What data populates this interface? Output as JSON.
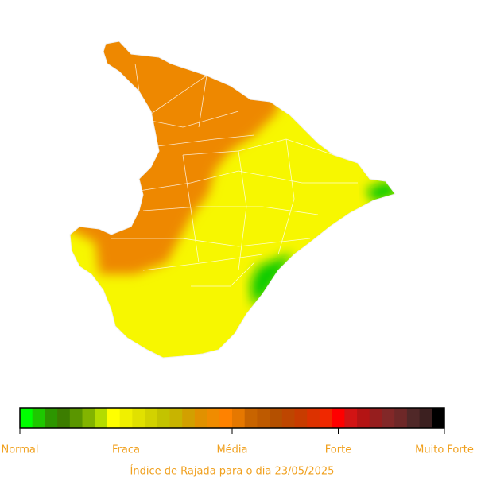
{
  "legend": {
    "labels": [
      "Normal",
      "Fraca",
      "Média",
      "Forte",
      "Muito Forte"
    ],
    "colors": [
      "#00ff00",
      "#1ec800",
      "#2d9600",
      "#3c7d00",
      "#5a9600",
      "#82b400",
      "#b4dc00",
      "#ffff00",
      "#f0f000",
      "#e1e100",
      "#d2d200",
      "#c3c300",
      "#c8b400",
      "#d2a000",
      "#e19100",
      "#f08c00",
      "#ff8200",
      "#e67800",
      "#c86400",
      "#be5a00",
      "#b45000",
      "#be4600",
      "#c83c00",
      "#dc3200",
      "#f02800",
      "#ff0000",
      "#d21414",
      "#b41414",
      "#961e1e",
      "#822828",
      "#6e2828",
      "#502828",
      "#3c2020",
      "#000000"
    ]
  },
  "caption": "Índice de Rajada para o dia 23/05/2025"
}
